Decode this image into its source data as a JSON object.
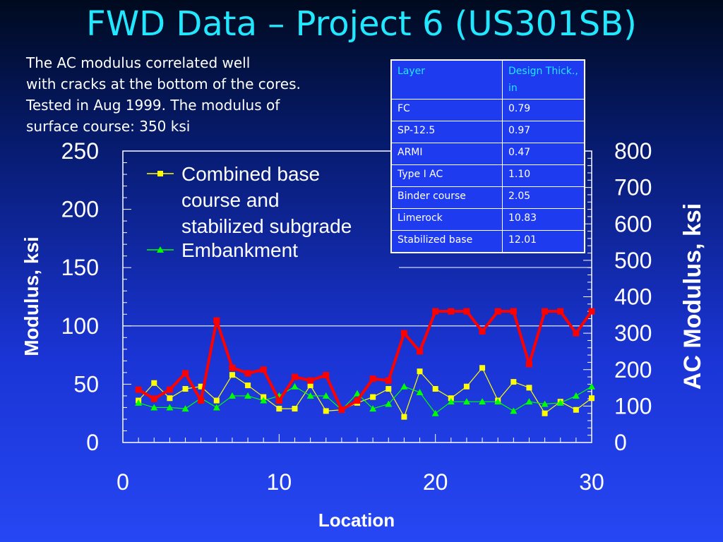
{
  "slide": {
    "title": "FWD Data – Project 6 (US301SB)",
    "note_lines": [
      "The AC modulus correlated well",
      "with cracks at the bottom of the cores.",
      "Tested in Aug 1999. The modulus of",
      "surface course: 350 ksi"
    ]
  },
  "table": {
    "headers": [
      "Layer",
      "Design Thick., in"
    ],
    "rows": [
      [
        "FC",
        "0.79"
      ],
      [
        "SP-12.5",
        "0.97"
      ],
      [
        "ARMI",
        "0.47"
      ],
      [
        "Type I AC",
        "1.10"
      ],
      [
        "Binder course",
        "2.05"
      ],
      [
        "Limerock",
        "10.83"
      ],
      [
        "Stabilized base",
        "12.01"
      ]
    ]
  },
  "chart_data": {
    "type": "line",
    "xlabel": "Location",
    "ylabel": "Modulus, ksi",
    "y2label": "AC Modulus, ksi",
    "xlim": [
      0,
      30
    ],
    "ylim": [
      0,
      250
    ],
    "y2lim": [
      0,
      800
    ],
    "x_ticks": [
      0,
      10,
      20,
      30
    ],
    "y_ticks": [
      0,
      50,
      100,
      150,
      200,
      250
    ],
    "y2_ticks": [
      0,
      100,
      200,
      300,
      400,
      500,
      600,
      700,
      800
    ],
    "grid": "horizontal at 100",
    "legend_position": "top-left",
    "x": [
      1,
      2,
      3,
      4,
      5,
      6,
      7,
      8,
      9,
      10,
      11,
      12,
      13,
      14,
      15,
      16,
      17,
      18,
      19,
      20,
      21,
      22,
      23,
      24,
      25,
      26,
      27,
      28,
      29,
      30
    ],
    "series": [
      {
        "name": "Combined base course and stabilized subgrade",
        "legend_lines": [
          "Combined base",
          "course and",
          "stabilized subgrade"
        ],
        "axis": "left",
        "color": "#ffff00",
        "marker": "square",
        "values": [
          36,
          51,
          38,
          46,
          48,
          36,
          58,
          49,
          39,
          29,
          29,
          49,
          27,
          28,
          34,
          39,
          46,
          22,
          61,
          46,
          38,
          48,
          64,
          36,
          52,
          47,
          25,
          35,
          28,
          38
        ]
      },
      {
        "name": "Embankment",
        "legend_lines": [
          "Embankment"
        ],
        "axis": "left",
        "color": "#00ff00",
        "marker": "triangle",
        "values": [
          34,
          30,
          30,
          29,
          38,
          30,
          40,
          40,
          36,
          40,
          48,
          40,
          40,
          28,
          42,
          29,
          33,
          48,
          43,
          25,
          35,
          35,
          35,
          35,
          27,
          35,
          33,
          34,
          40,
          48
        ]
      },
      {
        "name": "AC Modulus",
        "axis": "right",
        "color": "#ff0000",
        "marker": "square",
        "values": [
          145,
          120,
          145,
          190,
          115,
          335,
          205,
          190,
          200,
          115,
          180,
          170,
          185,
          90,
          115,
          175,
          170,
          300,
          250,
          360,
          360,
          360,
          305,
          360,
          360,
          215,
          360,
          360,
          300,
          360
        ]
      }
    ]
  }
}
